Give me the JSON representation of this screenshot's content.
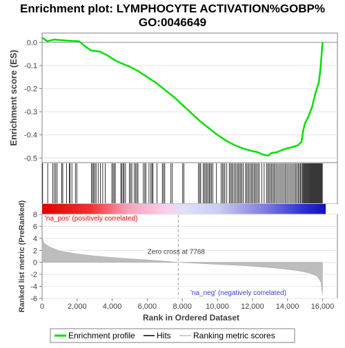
{
  "chart_data": {
    "type": "line",
    "title_line1": "Enrichment plot: LYMPHOCYTE ACTIVATION%GOBP%",
    "title_line2": "GO:0046649",
    "es_panel": {
      "ylabel": "Enrichment score (ES)",
      "ylim": [
        -0.52,
        0.04
      ],
      "yticks": [
        "0.0",
        "-0.1",
        "-0.2",
        "-0.3",
        "-0.4",
        "-0.5"
      ],
      "ytick_values": [
        0.0,
        -0.1,
        -0.2,
        -0.3,
        -0.4,
        -0.5
      ],
      "line_color": "#00e000",
      "series": [
        {
          "x": [
            0,
            300,
            700,
            1000,
            1300,
            1700,
            2100,
            2500,
            2800,
            3300,
            3700,
            4100,
            4500,
            5000,
            5500,
            6000,
            6500,
            7000,
            7500,
            8000,
            8500,
            9000,
            9500,
            10000,
            10500,
            11000,
            11500,
            12000,
            12300,
            12600,
            12900,
            13100,
            13400,
            13700,
            14000,
            14300,
            14600,
            14800,
            14900,
            15000,
            15200,
            15400,
            15600,
            15800,
            15900,
            16000
          ],
          "y": [
            0.02,
            0.005,
            0.012,
            0.01,
            0.008,
            0.006,
            0.005,
            -0.02,
            -0.035,
            -0.04,
            -0.055,
            -0.075,
            -0.09,
            -0.105,
            -0.125,
            -0.15,
            -0.175,
            -0.205,
            -0.235,
            -0.27,
            -0.305,
            -0.34,
            -0.37,
            -0.4,
            -0.425,
            -0.445,
            -0.46,
            -0.47,
            -0.475,
            -0.485,
            -0.49,
            -0.478,
            -0.475,
            -0.465,
            -0.458,
            -0.452,
            -0.445,
            -0.43,
            -0.38,
            -0.35,
            -0.32,
            -0.28,
            -0.22,
            -0.17,
            -0.1,
            0.0
          ]
        }
      ]
    },
    "hits": [
      30,
      320,
      610,
      700,
      780,
      860,
      1120,
      1180,
      1400,
      1550,
      1600,
      1700,
      1900,
      1980,
      2820,
      2880,
      2940,
      3010,
      3080,
      3200,
      3330,
      3460,
      3600,
      3980,
      4050,
      4110,
      4180,
      4490,
      4550,
      4620,
      4680,
      4760,
      4980,
      5050,
      5120,
      5260,
      5330,
      5400,
      5470,
      5780,
      5860,
      5920,
      6100,
      6210,
      6270,
      6330,
      6560,
      6860,
      6930,
      7000,
      7350,
      7430,
      8020,
      8090,
      8920,
      8990,
      9050,
      9190,
      9260,
      9330,
      9400,
      9470,
      9540,
      9600,
      9670,
      9740,
      9950,
      10220,
      10290,
      10360,
      10430,
      10540,
      10680,
      10750,
      10820,
      10890,
      10960,
      11040,
      11120,
      11190,
      11260,
      11330,
      11400,
      11480,
      11600,
      11670,
      11740,
      11810,
      11890,
      11960,
      12030,
      12100,
      12170,
      12240,
      12320,
      12390,
      12530,
      12670,
      12810,
      12880,
      12950,
      13020,
      13090,
      13160,
      13230,
      13300,
      13380,
      13460,
      13540,
      13620,
      13700,
      13780,
      13860,
      13930,
      14010,
      14090,
      14170,
      14250,
      14330,
      14410,
      14480,
      14550,
      14620,
      14680,
      14740,
      14800,
      14860,
      14910,
      14950,
      14990,
      15030,
      15070,
      15110,
      15150,
      15190,
      15230,
      15270,
      15310,
      15350,
      15390,
      15430,
      15470,
      15510,
      15550,
      15590,
      15630,
      15670,
      15710,
      15750,
      15790,
      15830,
      15870,
      15910,
      15950,
      15990
    ],
    "ranked_panel": {
      "ylabel": "Ranked list metric (PreRanked)",
      "ylim": [
        -6,
        8
      ],
      "yticks": [
        "8",
        "6",
        "4",
        "2",
        "0",
        "-2",
        "-4",
        "-6"
      ],
      "ytick_values": [
        8,
        6,
        4,
        2,
        0,
        -2,
        -4,
        -6
      ],
      "bar_color": "#bdbdbd",
      "series": [
        {
          "x": [
            0,
            100,
            400,
            1000,
            2000,
            3000,
            4000,
            5000,
            6000,
            7000,
            7768,
            8500,
            9500,
            10500,
            11500,
            12500,
            13500,
            14500,
            15000,
            15400,
            15700,
            15900,
            16000
          ],
          "y": [
            4.3,
            3.2,
            2.6,
            1.9,
            1.4,
            1.05,
            0.8,
            0.6,
            0.4,
            0.2,
            0.0,
            -0.1,
            -0.25,
            -0.4,
            -0.55,
            -0.75,
            -1.0,
            -1.35,
            -1.6,
            -1.9,
            -2.3,
            -3.2,
            -5.3
          ]
        }
      ],
      "pos_label": "'na_pos' (positively correlated)",
      "neg_label": "'na_neg' (negatively correlated)",
      "zero_cross_label": "Zero cross at 7768",
      "zero_cross": 7768,
      "pos_color": "#e00000",
      "neg_color": "#3a3ae0"
    },
    "xaxis": {
      "xlabel": "Rank in Ordered Dataset",
      "xlim": [
        0,
        16850
      ],
      "data_end": 16000,
      "xticks": [
        "0",
        "2,000",
        "4,000",
        "6,000",
        "8,000",
        "10,000",
        "12,000",
        "14,000",
        "16,000"
      ],
      "xtick_values": [
        0,
        2000,
        4000,
        6000,
        8000,
        10000,
        12000,
        14000,
        16000
      ]
    },
    "legend": {
      "placement": "bottom",
      "entries": [
        {
          "label": "Enrichment profile",
          "color": "#00e000"
        },
        {
          "label": "Hits",
          "color": "#000000"
        },
        {
          "label": "Ranking metric scores",
          "color": "#bdbdbd"
        }
      ]
    }
  }
}
